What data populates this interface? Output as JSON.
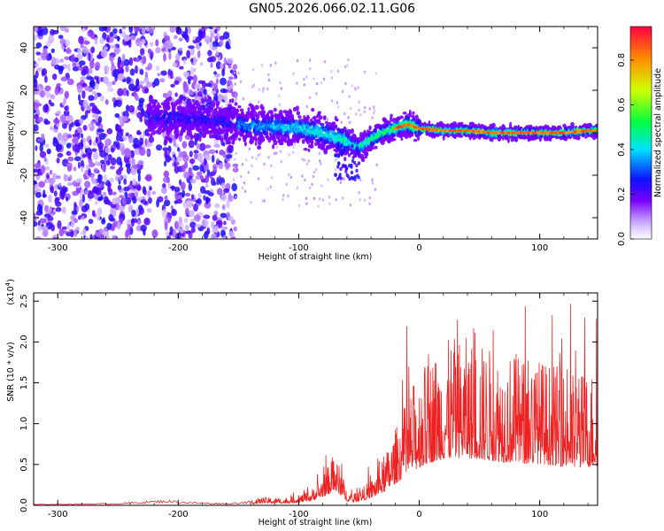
{
  "title": "GN05.2026.066.02.11.G06",
  "chart_data": [
    {
      "type": "heatmap",
      "xlabel": "Height of straight line (km)",
      "ylabel": "Frequency (Hz)",
      "xlim": [
        -320,
        148
      ],
      "ylim": [
        -50,
        50
      ],
      "xticks": [
        -300,
        -200,
        -100,
        0,
        100
      ],
      "yticks": [
        -40,
        -20,
        0,
        20,
        40
      ],
      "colorbar": {
        "label": "Normalized spectral amplitude",
        "range": [
          0,
          0.95
        ],
        "ticks": [
          0.0,
          0.2,
          0.4,
          0.6,
          0.8
        ]
      },
      "ridge": {
        "x": [
          -220,
          -200,
          -180,
          -160,
          -140,
          -120,
          -100,
          -80,
          -70,
          -60,
          -50,
          -40,
          -30,
          -20,
          -10,
          0,
          20,
          40,
          60,
          80,
          100,
          120,
          140
        ],
        "y": [
          7,
          7,
          6,
          5,
          3,
          3,
          2,
          0,
          -2,
          -4,
          -7,
          -3,
          0,
          2,
          4,
          2,
          1,
          1,
          0,
          0,
          0,
          0,
          1
        ]
      }
    },
    {
      "type": "line",
      "xlabel": "Height of straight line (km)",
      "ylabel": "SNR (10 * v/v)",
      "exponent_label": "(x10",
      "exponent": "4",
      "xlim": [
        -320,
        148
      ],
      "ylim": [
        0,
        2.6
      ],
      "xticks": [
        -300,
        -200,
        -100,
        0,
        100
      ],
      "yticks": [
        0.0,
        0.5,
        1.0,
        1.5,
        2.0,
        2.5
      ],
      "color": "#ee2222",
      "envelope": {
        "x": [
          -320,
          -250,
          -210,
          -190,
          -160,
          -140,
          -130,
          -110,
          -100,
          -90,
          -80,
          -75,
          -70,
          -65,
          -60,
          -55,
          -50,
          -45,
          -40,
          -35,
          -30,
          -25,
          -20,
          -15,
          -10,
          -5,
          0,
          10,
          20,
          30,
          40,
          50,
          60,
          70,
          80,
          90,
          100,
          110,
          120,
          130,
          140,
          148
        ],
        "y": [
          0.01,
          0.02,
          0.05,
          0.03,
          0.02,
          0.04,
          0.08,
          0.07,
          0.1,
          0.15,
          0.3,
          0.4,
          0.5,
          0.35,
          0.15,
          0.1,
          0.15,
          0.2,
          0.25,
          0.35,
          0.45,
          0.6,
          0.75,
          0.9,
          1.05,
          1.2,
          1.3,
          1.5,
          1.6,
          1.65,
          1.65,
          1.6,
          1.55,
          1.5,
          1.5,
          1.45,
          1.45,
          1.4,
          1.35,
          1.3,
          1.35,
          1.35
        ]
      }
    }
  ]
}
